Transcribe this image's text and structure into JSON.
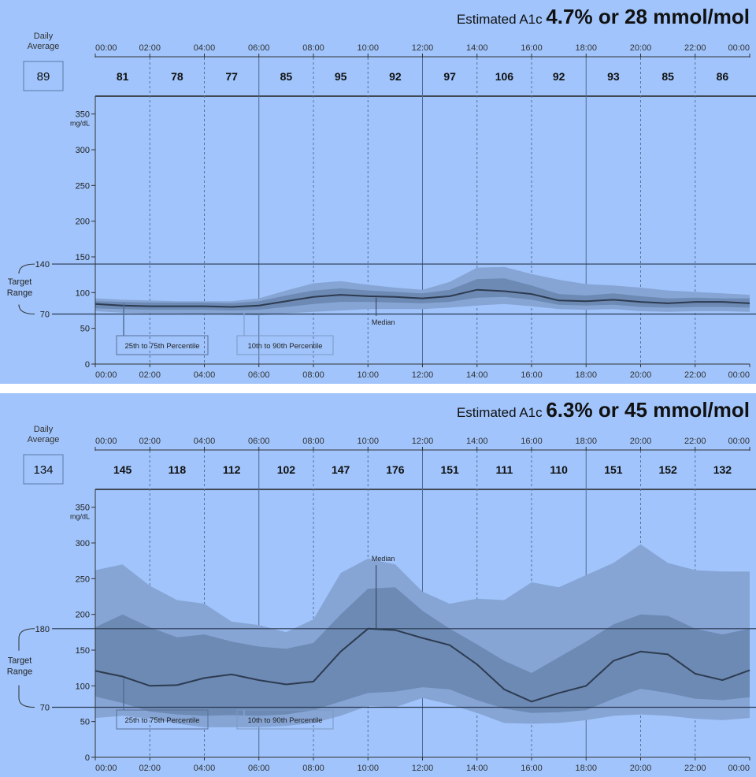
{
  "panels": [
    {
      "a1c_label": "Estimated A1c",
      "a1c_value": "4.7% or 28 mmol/mol",
      "daily_average_label": [
        "Daily",
        "Average"
      ],
      "daily_average": "89",
      "unit_label": "mg/dL",
      "target_range_label": [
        "Target",
        "Range"
      ],
      "target_low": "70",
      "target_high": "140",
      "median_label": "Median",
      "band_labels": [
        "25th to 75th Percentile",
        "10th to 90th Percentile"
      ],
      "chart_data": {
        "type": "area",
        "x_ticks": [
          "00:00",
          "02:00",
          "04:00",
          "06:00",
          "08:00",
          "10:00",
          "12:00",
          "14:00",
          "16:00",
          "18:00",
          "20:00",
          "22:00",
          "00:00"
        ],
        "y_ticks": [
          0,
          50,
          100,
          150,
          200,
          250,
          300,
          350
        ],
        "ylim": [
          0,
          375
        ],
        "xlim_hours": [
          0,
          24
        ],
        "target_range": [
          70,
          140
        ],
        "period_averages": [
          81,
          78,
          77,
          85,
          95,
          92,
          97,
          106,
          92,
          93,
          85,
          86
        ],
        "x_hours": [
          0,
          1,
          2,
          3,
          4,
          5,
          6,
          7,
          8,
          9,
          10,
          11,
          12,
          13,
          14,
          15,
          16,
          17,
          18,
          19,
          20,
          21,
          22,
          23,
          24
        ],
        "series": [
          {
            "name": "Median",
            "values": [
              84,
              82,
              81,
              81,
              81,
              80,
              82,
              88,
              94,
              97,
              95,
              94,
              92,
              95,
              104,
              102,
              98,
              89,
              88,
              90,
              87,
              85,
              87,
              87,
              85
            ]
          },
          {
            "name": "25th to 75th Percentile",
            "lower": [
              78,
              77,
              76,
              76,
              76,
              75,
              76,
              80,
              84,
              87,
              87,
              86,
              85,
              87,
              93,
              94,
              90,
              83,
              82,
              83,
              80,
              79,
              80,
              80,
              79
            ],
            "upper": [
              88,
              87,
              86,
              86,
              86,
              85,
              88,
              96,
              103,
              106,
              103,
              101,
              99,
              104,
              119,
              120,
              110,
              98,
              96,
              99,
              95,
              92,
              93,
              92,
              92
            ]
          },
          {
            "name": "10th to 90th Percentile",
            "lower": [
              74,
              72,
              71,
              71,
              70,
              69,
              68,
              71,
              73,
              75,
              77,
              77,
              77,
              79,
              82,
              84,
              81,
              77,
              76,
              77,
              74,
              73,
              74,
              74,
              73
            ],
            "upper": [
              92,
              90,
              89,
              88,
              88,
              88,
              92,
              103,
              113,
              116,
              111,
              107,
              104,
              115,
              135,
              136,
              126,
              118,
              112,
              110,
              107,
              103,
              101,
              99,
              97
            ]
          }
        ]
      }
    },
    {
      "a1c_label": "Estimated A1c",
      "a1c_value": "6.3% or 45 mmol/mol",
      "daily_average_label": [
        "Daily",
        "Average"
      ],
      "daily_average": "134",
      "unit_label": "mg/dL",
      "target_range_label": [
        "Target",
        "Range"
      ],
      "target_low": "70",
      "target_high": "180",
      "median_label": "Median",
      "band_labels": [
        "25th to 75th Percentile",
        "10th to 90th Percentile"
      ],
      "chart_data": {
        "type": "area",
        "x_ticks": [
          "00:00",
          "02:00",
          "04:00",
          "06:00",
          "08:00",
          "10:00",
          "12:00",
          "14:00",
          "16:00",
          "18:00",
          "20:00",
          "22:00",
          "00:00"
        ],
        "y_ticks": [
          0,
          50,
          100,
          150,
          200,
          250,
          300,
          350
        ],
        "ylim": [
          0,
          375
        ],
        "xlim_hours": [
          0,
          24
        ],
        "target_range": [
          70,
          180
        ],
        "period_averages": [
          145,
          118,
          112,
          102,
          147,
          176,
          151,
          111,
          110,
          151,
          152,
          132
        ],
        "x_hours": [
          0,
          1,
          2,
          3,
          4,
          5,
          6,
          7,
          8,
          9,
          10,
          11,
          12,
          13,
          14,
          15,
          16,
          17,
          18,
          19,
          20,
          21,
          22,
          23,
          24
        ],
        "series": [
          {
            "name": "Median",
            "values": [
              121,
              113,
              100,
              101,
              111,
              116,
              108,
              102,
              106,
              148,
              180,
              178,
              167,
              157,
              130,
              95,
              78,
              90,
              100,
              135,
              148,
              144,
              117,
              108,
              122
            ]
          },
          {
            "name": "25th to 75th Percentile",
            "lower": [
              85,
              76,
              64,
              60,
              58,
              59,
              58,
              60,
              66,
              78,
              90,
              92,
              98,
              95,
              80,
              68,
              62,
              63,
              66,
              82,
              96,
              90,
              82,
              80,
              84
            ],
            "upper": [
              182,
              200,
              182,
              168,
              172,
              162,
              155,
              152,
              160,
              200,
              236,
              238,
              205,
              180,
              158,
              135,
              118,
              140,
              162,
              186,
              200,
              198,
              180,
              172,
              180
            ]
          },
          {
            "name": "10th to 90th Percentile",
            "lower": [
              55,
              58,
              54,
              47,
              42,
              42,
              42,
              44,
              48,
              58,
              72,
              70,
              83,
              74,
              62,
              48,
              47,
              48,
              52,
              58,
              60,
              58,
              54,
              52,
              55
            ],
            "upper": [
              262,
              270,
              240,
              220,
              215,
              190,
              185,
              175,
              193,
              258,
              278,
              270,
              232,
              215,
              222,
              220,
              245,
              238,
              255,
              272,
              298,
              272,
              262,
              260,
              260
            ]
          }
        ]
      }
    }
  ]
}
